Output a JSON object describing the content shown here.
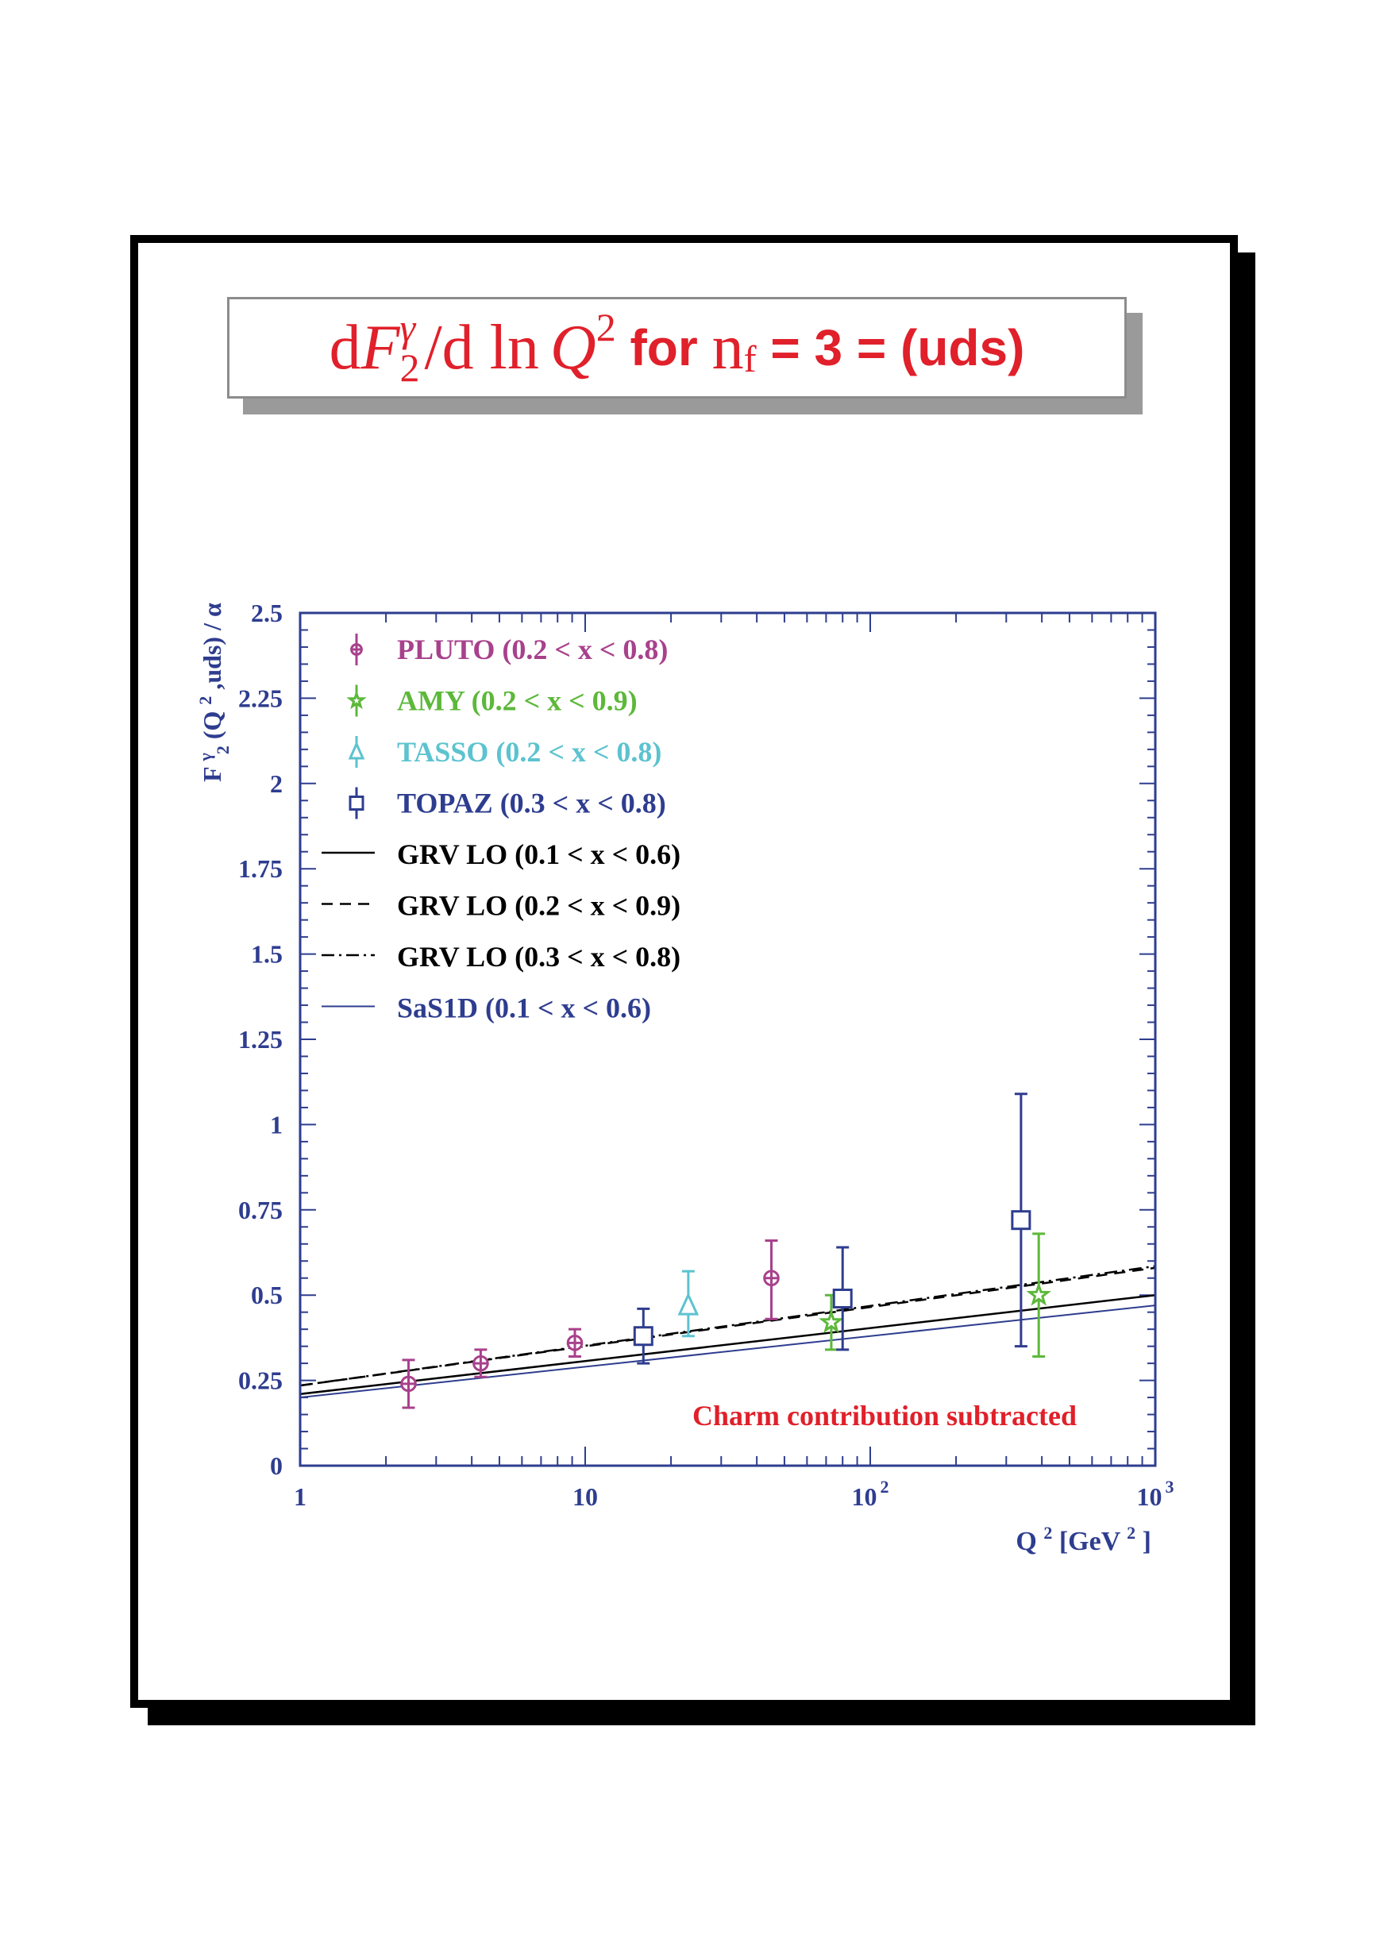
{
  "title": {
    "d1": "d",
    "F": "F",
    "sub2": "2",
    "supgamma": "γ",
    "slash_d_ln": "/d ln",
    "Q": "Q",
    "sup2": "2",
    "for": " for ",
    "n": "n",
    "subf": "f",
    "rest": " = 3 = (uds)"
  },
  "colors": {
    "title": "#e0202a",
    "axis": "#2e3d8f",
    "PLUTO": "#a8418c",
    "AMY": "#5cb83a",
    "TASSO": "#5cc3cf",
    "TOPAZ": "#2e3d8f",
    "GRV": "#000000",
    "SaS1D": "#2e3d8f",
    "annotation": "#e0202a"
  },
  "chart_data": {
    "type": "scatter",
    "ylabel": "F₂^γ (Q²,uds) / α",
    "ylabel_parts": {
      "F": "F",
      "sup": "γ",
      "sub": "2",
      "pre": "(Q",
      "sup2": "2",
      "post": ",uds) / α"
    },
    "xlabel_parts": {
      "Q": "Q",
      "sup2": "2",
      "unit_pre": " [GeV",
      "unit_sup": "2",
      "unit_post": "]"
    },
    "xscale": "log",
    "xlim": [
      1,
      1000
    ],
    "ylim": [
      0,
      2.5
    ],
    "x_ticks": [
      {
        "value": 1,
        "base": "1",
        "exp": ""
      },
      {
        "value": 10,
        "base": "10",
        "exp": ""
      },
      {
        "value": 100,
        "base": "10",
        "exp": "2"
      },
      {
        "value": 1000,
        "base": "10",
        "exp": "3"
      }
    ],
    "y_ticks": [
      {
        "value": 0,
        "label": "0"
      },
      {
        "value": 0.25,
        "label": "0.25"
      },
      {
        "value": 0.5,
        "label": "0.5"
      },
      {
        "value": 0.75,
        "label": "0.75"
      },
      {
        "value": 1,
        "label": "1"
      },
      {
        "value": 1.25,
        "label": "1.25"
      },
      {
        "value": 1.5,
        "label": "1.5"
      },
      {
        "value": 1.75,
        "label": "1.75"
      },
      {
        "value": 2,
        "label": "2"
      },
      {
        "value": 2.25,
        "label": "2.25"
      },
      {
        "value": 2.5,
        "label": "2.5"
      }
    ],
    "series": [
      {
        "name": "PLUTO (0.2 < x < 0.8)",
        "key": "PLUTO",
        "marker": "cross-circle",
        "points": [
          {
            "x": 2.4,
            "y": 0.24,
            "ylo": 0.17,
            "yhi": 0.31
          },
          {
            "x": 4.3,
            "y": 0.3,
            "ylo": 0.26,
            "yhi": 0.34
          },
          {
            "x": 9.2,
            "y": 0.36,
            "ylo": 0.32,
            "yhi": 0.4
          },
          {
            "x": 45,
            "y": 0.55,
            "ylo": 0.43,
            "yhi": 0.66
          }
        ]
      },
      {
        "name": "AMY (0.2 < x < 0.9)",
        "key": "AMY",
        "marker": "star",
        "points": [
          {
            "x": 73,
            "y": 0.42,
            "ylo": 0.34,
            "yhi": 0.5
          },
          {
            "x": 390,
            "y": 0.5,
            "ylo": 0.32,
            "yhi": 0.68
          }
        ]
      },
      {
        "name": "TASSO (0.2 < x < 0.8)",
        "key": "TASSO",
        "marker": "triangle",
        "points": [
          {
            "x": 23,
            "y": 0.47,
            "ylo": 0.38,
            "yhi": 0.57
          }
        ]
      },
      {
        "name": "TOPAZ (0.3 < x < 0.8)",
        "key": "TOPAZ",
        "marker": "square",
        "points": [
          {
            "x": 16,
            "y": 0.38,
            "ylo": 0.3,
            "yhi": 0.46
          },
          {
            "x": 80,
            "y": 0.49,
            "ylo": 0.34,
            "yhi": 0.64
          },
          {
            "x": 338,
            "y": 0.72,
            "ylo": 0.35,
            "yhi": 1.09
          }
        ]
      }
    ],
    "curves": [
      {
        "name": "GRV LO (0.1 < x < 0.6)",
        "key": "GRV",
        "dash": "solid",
        "x": [
          1,
          1000
        ],
        "y": [
          0.21,
          0.5
        ]
      },
      {
        "name": "GRV LO (0.2 < x < 0.9)",
        "key": "GRV",
        "dash": "dashed",
        "x": [
          1,
          1000
        ],
        "y": [
          0.235,
          0.58
        ]
      },
      {
        "name": "GRV LO (0.3 < x < 0.8)",
        "key": "GRV",
        "dash": "dashdot",
        "x": [
          1,
          1000
        ],
        "y": [
          0.235,
          0.585
        ]
      },
      {
        "name": "SaS1D (0.1 < x < 0.6)",
        "key": "SaS1D",
        "dash": "solid",
        "x": [
          1,
          1000
        ],
        "y": [
          0.2,
          0.47
        ]
      }
    ],
    "legend_position": "top-left",
    "annotation": "Charm contribution subtracted"
  }
}
